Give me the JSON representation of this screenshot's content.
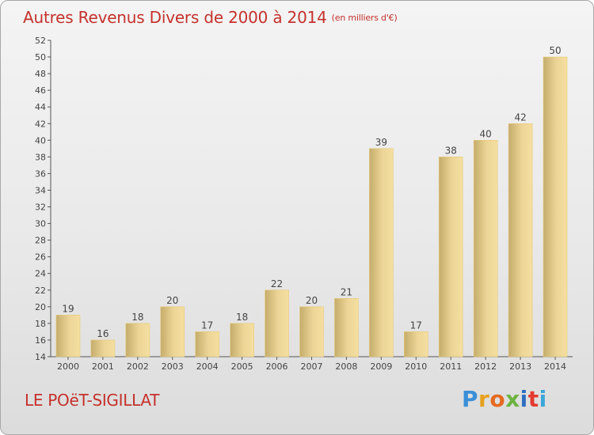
{
  "title": "Autres Revenus Divers de 2000 à 2014",
  "unit": "(en milliers d'€)",
  "place": "LE POëT-SIGILLAT",
  "logo": {
    "text": "Proxiti",
    "colors": [
      "#3a8fd8",
      "#e6a11e",
      "#e66a1f",
      "#6db33f",
      "#2f6fbf",
      "#e33b2f",
      "#3aa7d9"
    ]
  },
  "colors": {
    "title": "#c5322d",
    "bar_light": "#f5dfa0",
    "bar_dark": "#c4ac6c",
    "bar_stroke": "#e8c979"
  },
  "chart_data": {
    "type": "bar",
    "title": "Autres Revenus Divers de 2000 à 2014",
    "ylabel": "",
    "xlabel": "",
    "categories": [
      "2000",
      "2001",
      "2002",
      "2003",
      "2004",
      "2005",
      "2006",
      "2007",
      "2008",
      "2009",
      "2010",
      "2011",
      "2012",
      "2013",
      "2014"
    ],
    "values": [
      19,
      16,
      18,
      20,
      17,
      18,
      22,
      20,
      21,
      39,
      17,
      38,
      40,
      42,
      50
    ],
    "ylim": [
      14,
      52
    ],
    "yticks": [
      14,
      16,
      18,
      20,
      22,
      24,
      26,
      28,
      30,
      32,
      34,
      36,
      38,
      40,
      42,
      44,
      46,
      48,
      50,
      52
    ],
    "grid": false,
    "data_labels": true
  }
}
